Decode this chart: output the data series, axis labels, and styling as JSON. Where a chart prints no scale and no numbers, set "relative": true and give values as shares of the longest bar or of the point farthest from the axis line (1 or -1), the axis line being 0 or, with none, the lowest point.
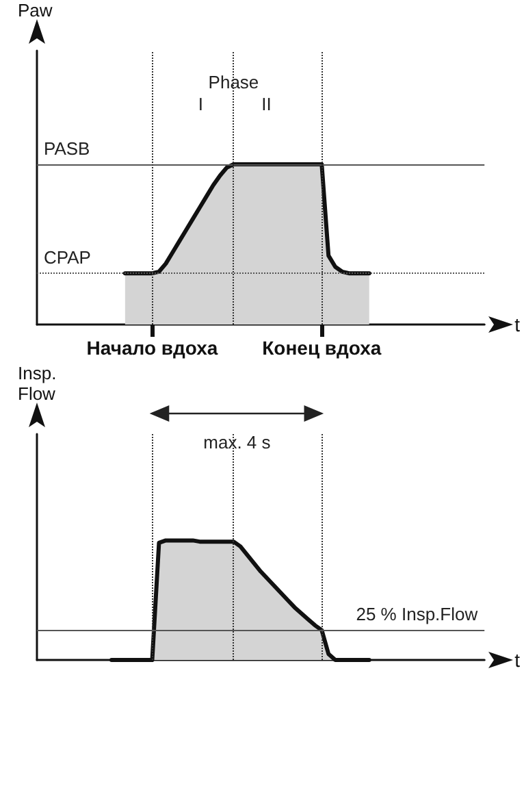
{
  "chart_data": [
    {
      "type": "area",
      "relative": true,
      "ylabel": "Paw",
      "xlabel": "t",
      "categories": [
        null,
        null,
        null,
        null,
        null,
        null,
        null,
        null,
        null,
        null,
        null,
        null,
        null,
        null,
        null,
        null,
        null,
        "Начало вдоха",
        null,
        null,
        null,
        null,
        null,
        null,
        null,
        null,
        null,
        null,
        null,
        null,
        null,
        null,
        null,
        null,
        null,
        null,
        null,
        null,
        null,
        null,
        null,
        null,
        "Конец вдоха",
        null,
        null,
        null,
        null,
        null,
        null,
        null,
        null,
        null,
        null,
        null,
        null,
        null,
        null,
        null,
        null,
        null,
        null,
        null,
        null,
        null,
        null,
        null,
        null
      ],
      "series": [
        {
          "color": "#111111",
          "values": [
            null,
            null,
            null,
            null,
            null,
            null,
            null,
            null,
            null,
            null,
            null,
            null,
            null,
            0.32,
            0.32,
            0.32,
            0.32,
            0.32,
            0.33,
            0.38,
            0.45,
            0.52,
            0.59,
            0.66,
            0.73,
            0.8,
            0.87,
            0.93,
            0.98,
            1,
            1,
            1,
            1,
            1,
            1,
            1,
            1,
            1,
            1,
            1,
            1,
            1,
            1,
            0.43,
            0.36,
            0.33,
            0.32,
            0.32,
            0.32,
            0.32,
            null,
            null,
            null,
            null,
            null,
            null,
            null,
            null,
            null,
            null,
            null,
            null,
            null,
            null,
            null,
            null,
            null
          ]
        }
      ],
      "grid": "x",
      "ref_lines": [
        {
          "axis": "y",
          "value": 1,
          "label": "PASB",
          "line_style": "solid"
        },
        {
          "axis": "y",
          "value": 0.32,
          "label": "CPAP",
          "line_style": "dotted"
        }
      ],
      "annotations": [
        "Phase",
        "I",
        "II"
      ]
    },
    {
      "type": "area",
      "relative": true,
      "ylabel": "Insp. Flow",
      "xlabel": "t",
      "categories": [
        null,
        null,
        null,
        null,
        null,
        null,
        null,
        null,
        null,
        null,
        null,
        null,
        null,
        null,
        null,
        null,
        null,
        null,
        null,
        null,
        null,
        null,
        null,
        null,
        null,
        null,
        null,
        null,
        null,
        null,
        null,
        null,
        null,
        null,
        null,
        null,
        null,
        null,
        null,
        null,
        null,
        null,
        null,
        null,
        null,
        null,
        null,
        null,
        null,
        null,
        null,
        null,
        null,
        null,
        null,
        null,
        null,
        null,
        null,
        null,
        null,
        null,
        null,
        null,
        null,
        null,
        null
      ],
      "series": [
        {
          "color": "#111111",
          "values": [
            null,
            null,
            null,
            null,
            null,
            null,
            null,
            null,
            null,
            null,
            null,
            0,
            0,
            0,
            0,
            0,
            0,
            0,
            0.98,
            1,
            1,
            1,
            1,
            1,
            0.99,
            0.99,
            0.99,
            0.99,
            0.99,
            0.99,
            0.95,
            0.88,
            0.81,
            0.74,
            0.68,
            0.62,
            0.56,
            0.5,
            0.44,
            0.39,
            0.34,
            0.29,
            0.25,
            0.05,
            0,
            0,
            0,
            0,
            0,
            0,
            null,
            null,
            null,
            null,
            null,
            null,
            null,
            null,
            null,
            null,
            null,
            null,
            null,
            null,
            null,
            null,
            null
          ]
        }
      ],
      "grid": "x",
      "ref_lines": [
        {
          "axis": "y",
          "value": 0.25,
          "label": "25 % Insp.Flow",
          "line_style": "solid"
        }
      ],
      "annotations": [
        "max. 4 s"
      ]
    }
  ]
}
